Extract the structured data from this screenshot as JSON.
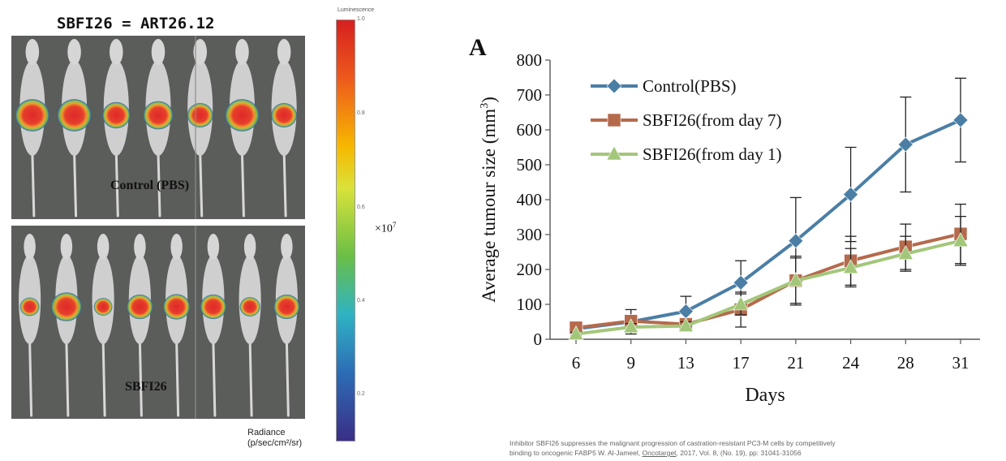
{
  "left_figure": {
    "title": "SBFI26 = ART26.12",
    "panels": [
      {
        "label": "Control (PBS)",
        "mice": [
          1,
          1,
          0.7,
          0.8,
          0.6,
          1,
          0.6
        ]
      },
      {
        "label": "SBFI26",
        "mice": [
          0.35,
          0.95,
          0.3,
          0.7,
          0.75,
          0.7,
          0.4,
          0.7
        ]
      }
    ]
  },
  "scale": {
    "header": "Luminescence",
    "ticks": [
      "1.0",
      "0.8",
      "0.6",
      "0.4",
      "0.2"
    ],
    "multiplier": "×10",
    "exponent": "7",
    "radiance_label": "Radiance",
    "radiance_unit": "(p/sec/cm²/sr)"
  },
  "chart_data": {
    "type": "line",
    "panel_letter": "A",
    "xlabel": "Days",
    "ylabel": "Average tumour size (mm",
    "ylabel_sup": "3",
    "ylabel_end": ")",
    "ylim": [
      0,
      800
    ],
    "yticks": [
      0,
      100,
      200,
      300,
      400,
      500,
      600,
      700,
      800
    ],
    "categories": [
      "6",
      "9",
      "13",
      "17",
      "21",
      "24",
      "28",
      "31"
    ],
    "legend_position": "top-left",
    "series": [
      {
        "name": "Control(PBS)",
        "color": "#4a7ea5",
        "marker": "diamond",
        "values": [
          30,
          50,
          80,
          162,
          282,
          415,
          558,
          628
        ],
        "errors": [
          10,
          35,
          43,
          63,
          124,
          135,
          136,
          120
        ]
      },
      {
        "name": "SBFI26(from day 7)",
        "color": "#b56a4c",
        "marker": "square",
        "values": [
          33,
          52,
          43,
          85,
          168,
          225,
          265,
          302
        ],
        "errors": [
          5,
          15,
          15,
          50,
          70,
          70,
          65,
          85
        ]
      },
      {
        "name": "SBFI26(from day 1)",
        "color": "#a3c77a",
        "marker": "triangle",
        "values": [
          15,
          35,
          38,
          100,
          168,
          205,
          245,
          282
        ],
        "errors": [
          5,
          10,
          12,
          30,
          65,
          55,
          50,
          70
        ]
      }
    ]
  },
  "citation": {
    "line1": "Inhibitor SBFI26 suppresses the malignant progression of castration-resistant PC3-M cells by competitively",
    "line2_a": "binding to oncogenic FABP5  W. Al-Jameel, ",
    "line2_journal": "Oncotarget",
    "line2_b": ", 2017, Vol. 8, (No. 19),  pp: 31041-31056"
  }
}
